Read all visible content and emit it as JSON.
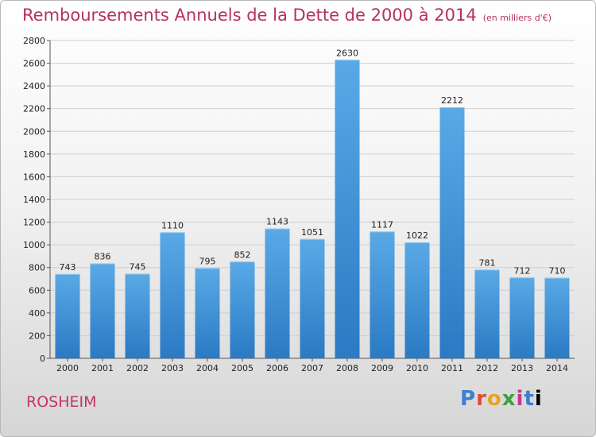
{
  "title": "Remboursements Annuels de la Dette de 2000 à 2014",
  "unit_note": "(en milliers d'€)",
  "city": "ROSHEIM",
  "logo_text": "Proxiti",
  "colors": {
    "title": "#b5315d",
    "bar_top": "#5aa9e6",
    "bar_bottom": "#2a7ac4",
    "grid": "#cfcfcf"
  },
  "chart_data": {
    "type": "bar",
    "categories": [
      "2000",
      "2001",
      "2002",
      "2003",
      "2004",
      "2005",
      "2006",
      "2007",
      "2008",
      "2009",
      "2010",
      "2011",
      "2012",
      "2013",
      "2014"
    ],
    "values": [
      743,
      836,
      745,
      1110,
      795,
      852,
      1143,
      1051,
      2630,
      1117,
      1022,
      2212,
      781,
      712,
      710
    ],
    "ylim": [
      0,
      2800
    ],
    "yticks": [
      0,
      200,
      400,
      600,
      800,
      1000,
      1200,
      1400,
      1600,
      1800,
      2000,
      2200,
      2400,
      2600,
      2800
    ],
    "grid": true,
    "xlabel": "",
    "ylabel": ""
  }
}
